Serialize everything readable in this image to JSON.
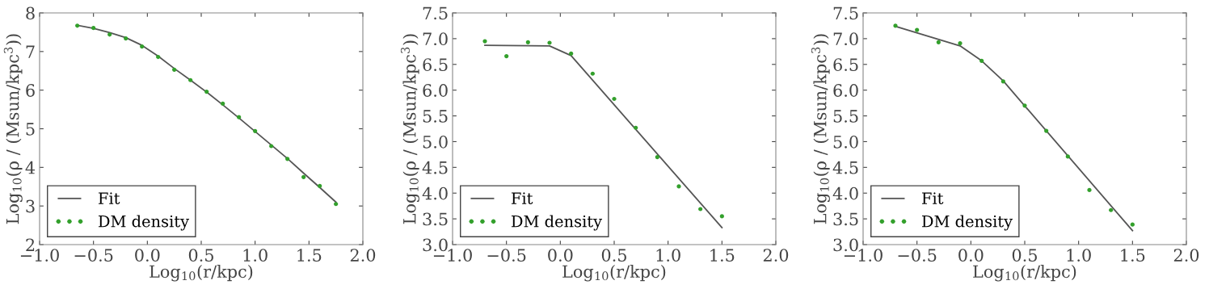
{
  "chart_data": [
    {
      "type": "line",
      "xlabel": "Log$_{10}$(r/kpc)",
      "ylabel": "Log$_{10}$(ρ / (Msun/kpc$^{3}$))",
      "xlim": [
        -1.0,
        2.0
      ],
      "xticks": [
        {
          "value": -1.0,
          "label": "−1.0"
        },
        {
          "value": -0.5,
          "label": "−0.5"
        },
        {
          "value": 0.0,
          "label": "0.0"
        },
        {
          "value": 0.5,
          "label": "0.5"
        },
        {
          "value": 1.0,
          "label": "1.0"
        },
        {
          "value": 1.5,
          "label": "1.5"
        },
        {
          "value": 2.0,
          "label": "2.0"
        }
      ],
      "ylim": [
        2,
        8
      ],
      "yticks": [
        2,
        3,
        4,
        5,
        6,
        7,
        8
      ],
      "grid": false,
      "legend": "bottom left",
      "series": [
        {
          "name": "Fit",
          "color": "#555555",
          "marker": "none",
          "line_style": "solid",
          "x": [
            -0.65,
            -0.5,
            -0.35,
            -0.2,
            -0.05,
            0.1,
            0.25,
            0.4,
            0.55,
            0.7,
            0.85,
            1.0,
            1.15,
            1.3,
            1.45,
            1.6,
            1.75
          ],
          "values": [
            7.68,
            7.6,
            7.49,
            7.36,
            7.16,
            6.88,
            6.56,
            6.26,
            5.95,
            5.62,
            5.28,
            4.93,
            4.58,
            4.23,
            3.85,
            3.48,
            3.1
          ]
        },
        {
          "name": "DM density",
          "type": "scatter",
          "color": "#33a02c",
          "marker": "circle",
          "x": [
            -0.65,
            -0.5,
            -0.35,
            -0.2,
            -0.05,
            0.1,
            0.25,
            0.4,
            0.55,
            0.7,
            0.85,
            1.0,
            1.15,
            1.3,
            1.45,
            1.6,
            1.75
          ],
          "values": [
            7.67,
            7.61,
            7.44,
            7.34,
            7.13,
            6.86,
            6.53,
            6.26,
            5.96,
            5.65,
            5.3,
            4.94,
            4.55,
            4.22,
            3.75,
            3.52,
            3.05
          ]
        }
      ]
    },
    {
      "type": "line",
      "xlabel": "Log$_{10}$(r/kpc)",
      "ylabel": "Log$_{10}$(ρ / (Msun/kpc$^{3}$))",
      "xlim": [
        -1.0,
        2.0
      ],
      "xticks": [
        {
          "value": -1.0,
          "label": "−1.0"
        },
        {
          "value": -0.5,
          "label": "−0.5"
        },
        {
          "value": 0.0,
          "label": "0.0"
        },
        {
          "value": 0.5,
          "label": "0.5"
        },
        {
          "value": 1.0,
          "label": "1.0"
        },
        {
          "value": 1.5,
          "label": "1.5"
        },
        {
          "value": 2.0,
          "label": "2.0"
        }
      ],
      "ylim": [
        3.0,
        7.5
      ],
      "yticks": [
        {
          "value": 3.0,
          "label": "3.0"
        },
        3.5,
        {
          "value": 4.0,
          "label": "4.0"
        },
        4.5,
        {
          "value": 5.0,
          "label": "5.0"
        },
        5.5,
        {
          "value": 6.0,
          "label": "6.0"
        },
        6.5,
        {
          "value": 7.0,
          "label": "7.0"
        },
        7.5
      ],
      "grid": false,
      "legend": "bottom left",
      "series": [
        {
          "name": "Fit",
          "color": "#555555",
          "marker": "none",
          "line_style": "solid",
          "x": [
            -0.7,
            -0.1,
            0.1,
            1.5
          ],
          "values": [
            6.87,
            6.86,
            6.67,
            3.33
          ]
        },
        {
          "name": "DM density",
          "type": "scatter",
          "color": "#33a02c",
          "marker": "circle",
          "x": [
            -0.7,
            -0.5,
            -0.3,
            -0.1,
            0.1,
            0.3,
            0.5,
            0.7,
            0.9,
            1.1,
            1.3,
            1.5
          ],
          "values": [
            6.95,
            6.66,
            6.93,
            6.92,
            6.71,
            6.32,
            5.83,
            5.27,
            4.7,
            4.13,
            3.69,
            3.55
          ]
        }
      ]
    },
    {
      "type": "line",
      "xlabel": "Log$_{10}$(r/kpc)",
      "ylabel": "Log$_{10}$(ρ / (Msun/kpc$^{3}$))",
      "xlim": [
        -1.0,
        2.0
      ],
      "xticks": [
        {
          "value": -1.0,
          "label": "−1.0"
        },
        {
          "value": -0.5,
          "label": "−0.5"
        },
        {
          "value": 0.0,
          "label": "0.0"
        },
        {
          "value": 0.5,
          "label": "0.5"
        },
        {
          "value": 1.0,
          "label": "1.0"
        },
        {
          "value": 1.5,
          "label": "1.5"
        },
        {
          "value": 2.0,
          "label": "2.0"
        }
      ],
      "ylim": [
        3.0,
        7.5
      ],
      "yticks": [
        {
          "value": 3.0,
          "label": "3.0"
        },
        3.5,
        {
          "value": 4.0,
          "label": "4.0"
        },
        4.5,
        {
          "value": 5.0,
          "label": "5.0"
        },
        5.5,
        {
          "value": 6.0,
          "label": "6.0"
        },
        6.5,
        {
          "value": 7.0,
          "label": "7.0"
        },
        7.5
      ],
      "grid": false,
      "legend": "bottom left",
      "series": [
        {
          "name": "Fit",
          "color": "#555555",
          "marker": "none",
          "line_style": "solid",
          "x": [
            -0.7,
            -0.1,
            0.1,
            0.3,
            1.5
          ],
          "values": [
            7.24,
            6.86,
            6.57,
            6.18,
            3.27
          ]
        },
        {
          "name": "DM density",
          "type": "scatter",
          "color": "#33a02c",
          "marker": "circle",
          "x": [
            -0.7,
            -0.5,
            -0.3,
            -0.1,
            0.1,
            0.3,
            0.5,
            0.7,
            0.9,
            1.1,
            1.3,
            1.5
          ],
          "values": [
            7.25,
            7.17,
            6.93,
            6.91,
            6.57,
            6.17,
            5.7,
            5.21,
            4.71,
            4.06,
            3.67,
            3.39
          ]
        }
      ]
    }
  ]
}
